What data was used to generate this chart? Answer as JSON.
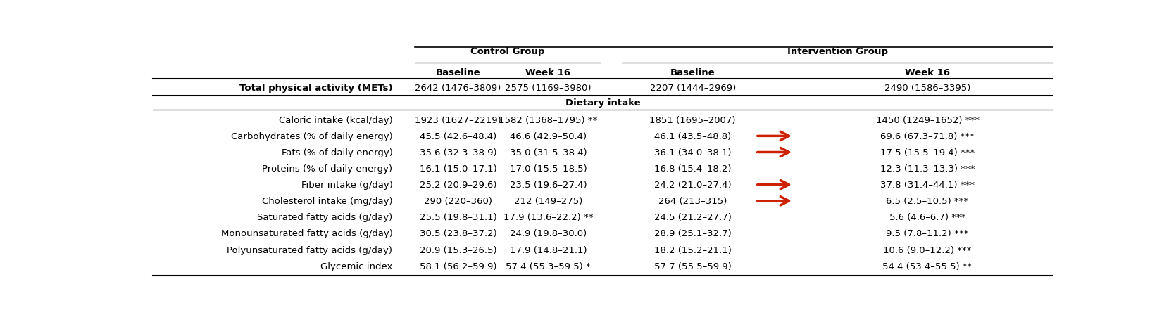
{
  "title_control": "Control Group",
  "title_intervention": "Intervention Group",
  "col_headers": [
    "Baseline",
    "Week 16",
    "Baseline",
    "Week 16"
  ],
  "section_header": "Dietary intake",
  "physical_activity_label": "Total physical activity (METs)",
  "physical_activity_data": [
    "2642 (1476–3809)",
    "2575 (1169–3980)",
    "2207 (1444–2969)",
    "2490 (1586–3395)"
  ],
  "row_labels": [
    "Caloric intake (kcal/day)",
    "Carbohydrates (% of daily energy)",
    "Fats (% of daily energy)",
    "Proteins (% of daily energy)",
    "Fiber intake (g/day)",
    "Cholesterol intake (mg/day)",
    "Saturated fatty acids (g/day)",
    "Monounsaturated fatty acids (g/day)",
    "Polyunsaturated fatty acids (g/day)",
    "Glycemic index"
  ],
  "data": [
    [
      "1923 (1627–2219)",
      "1582 (1368–1795) **",
      "1851 (1695–2007)",
      "1450 (1249–1652) ***"
    ],
    [
      "45.5 (42.6–48.4)",
      "46.6 (42.9–50.4)",
      "46.1 (43.5–48.8)",
      "69.6 (67.3–71.8) ***"
    ],
    [
      "35.6 (32.3–38.9)",
      "35.0 (31.5–38.4)",
      "36.1 (34.0–38.1)",
      "17.5 (15.5–19.4) ***"
    ],
    [
      "16.1 (15.0–17.1)",
      "17.0 (15.5–18.5)",
      "16.8 (15.4–18.2)",
      "12.3 (11.3–13.3) ***"
    ],
    [
      "25.2 (20.9–29.6)",
      "23.5 (19.6–27.4)",
      "24.2 (21.0–27.4)",
      "37.8 (31.4–44.1) ***"
    ],
    [
      "290 (220–360)",
      "212 (149–275)",
      "264 (213–315)",
      "6.5 (2.5–10.5) ***"
    ],
    [
      "25.5 (19.8–31.1)",
      "17.9 (13.6–22.2) **",
      "24.5 (21.2–27.7)",
      "5.6 (4.6–6.7) ***"
    ],
    [
      "30.5 (23.8–37.2)",
      "24.9 (19.8–30.0)",
      "28.9 (25.1–32.7)",
      "9.5 (7.8–11.2) ***"
    ],
    [
      "20.9 (15.3–26.5)",
      "17.9 (14.8–21.1)",
      "18.2 (15.2–21.1)",
      "10.6 (9.0–12.2) ***"
    ],
    [
      "58.1 (56.2–59.9)",
      "57.4 (55.3–59.5) *",
      "57.7 (55.5–59.9)",
      "54.4 (53.4–55.5) **"
    ]
  ],
  "arrow_rows": [
    1,
    2,
    4,
    5
  ],
  "arrow_color": "#cc2200",
  "bg_color": "#ffffff",
  "text_color": "#000000"
}
